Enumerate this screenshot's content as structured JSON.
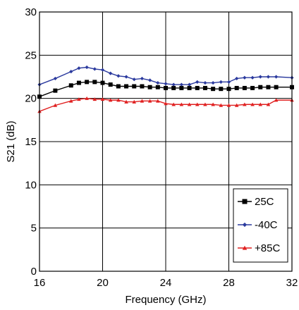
{
  "chart_data": {
    "type": "line",
    "title": "",
    "xlabel": "Frequency (GHz)",
    "ylabel": "S21 (dB)",
    "xlim": [
      16,
      32
    ],
    "ylim": [
      0,
      30
    ],
    "x_ticks": [
      16,
      20,
      24,
      28,
      32
    ],
    "y_ticks": [
      0,
      5,
      10,
      15,
      20,
      25,
      30
    ],
    "x_tick_labels": [
      "16",
      "20",
      "24",
      "28",
      "32"
    ],
    "y_tick_labels": [
      "0",
      "5",
      "10",
      "15",
      "20",
      "25",
      "30"
    ],
    "grid": true,
    "legend_position": "bottom-right",
    "series": [
      {
        "name": "25C",
        "color": "#000000",
        "marker": "square",
        "x": [
          16,
          17,
          18,
          18.5,
          19,
          19.5,
          20,
          20.5,
          21,
          21.5,
          22,
          22.5,
          23,
          23.5,
          24,
          24.5,
          25,
          25.5,
          26,
          26.5,
          27,
          27.5,
          28,
          28.5,
          29,
          29.5,
          30,
          30.5,
          31,
          32
        ],
        "y": [
          20.2,
          20.9,
          21.5,
          21.8,
          21.9,
          21.9,
          21.8,
          21.6,
          21.4,
          21.4,
          21.4,
          21.4,
          21.3,
          21.3,
          21.2,
          21.2,
          21.2,
          21.2,
          21.2,
          21.2,
          21.1,
          21.1,
          21.1,
          21.2,
          21.2,
          21.2,
          21.3,
          21.3,
          21.3,
          21.3
        ]
      },
      {
        "name": "-40C",
        "color": "#2b3a9e",
        "marker": "diamond",
        "x": [
          16,
          17,
          18,
          18.5,
          19,
          19.5,
          20,
          20.5,
          21,
          21.5,
          22,
          22.5,
          23,
          23.5,
          24,
          24.5,
          25,
          25.5,
          26,
          26.5,
          27,
          27.5,
          28,
          28.5,
          29,
          29.5,
          30,
          30.5,
          31,
          32
        ],
        "y": [
          21.6,
          22.3,
          23.1,
          23.5,
          23.6,
          23.4,
          23.3,
          22.9,
          22.6,
          22.5,
          22.2,
          22.3,
          22.1,
          21.8,
          21.7,
          21.6,
          21.6,
          21.6,
          21.9,
          21.8,
          21.8,
          21.9,
          21.9,
          22.3,
          22.4,
          22.4,
          22.5,
          22.5,
          22.5,
          22.4
        ]
      },
      {
        "name": "+85C",
        "color": "#e02020",
        "marker": "triangle",
        "x": [
          16,
          17,
          18,
          18.5,
          19,
          19.5,
          20,
          20.5,
          21,
          21.5,
          22,
          22.5,
          23,
          23.5,
          24,
          24.5,
          25,
          25.5,
          26,
          26.5,
          27,
          27.5,
          28,
          28.5,
          29,
          29.5,
          30,
          30.5,
          31,
          32
        ],
        "y": [
          18.5,
          19.2,
          19.7,
          19.9,
          20.0,
          19.9,
          19.9,
          19.8,
          19.8,
          19.6,
          19.6,
          19.7,
          19.7,
          19.7,
          19.4,
          19.3,
          19.3,
          19.3,
          19.3,
          19.3,
          19.3,
          19.2,
          19.2,
          19.2,
          19.3,
          19.3,
          19.3,
          19.3,
          19.8,
          19.8
        ]
      }
    ]
  }
}
